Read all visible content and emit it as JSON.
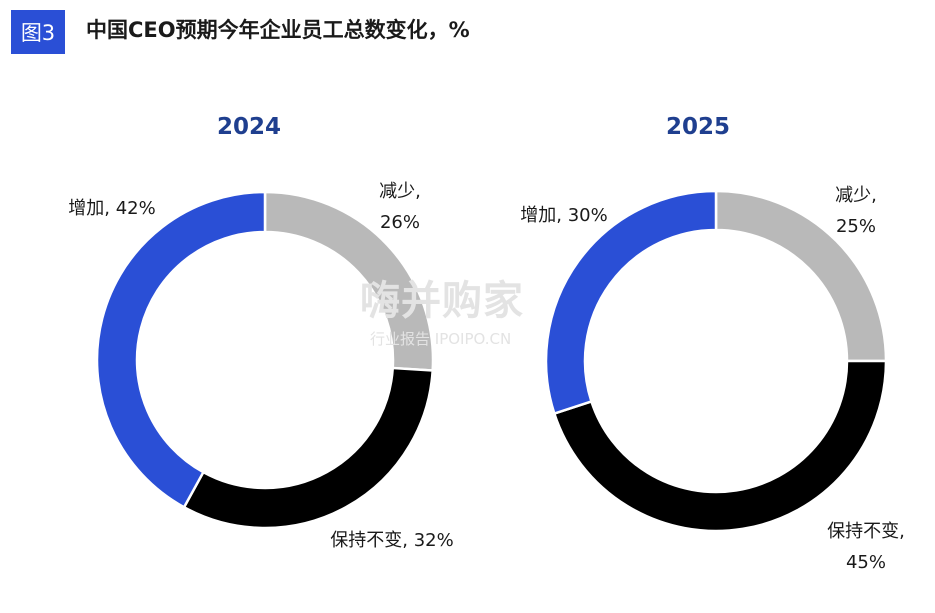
{
  "header": {
    "badge": "图3",
    "title": "中国CEO预期今年企业员工总数变化，%"
  },
  "watermark": {
    "main": "嗨并购家",
    "sub": "行业报告 IPOIPO.CN"
  },
  "colors": {
    "increase": "#2a4fd6",
    "decrease": "#b9b9b9",
    "unchanged": "#000000",
    "year_text": "#1f3f8f"
  },
  "chart_data": [
    {
      "type": "pie",
      "style": "donut",
      "title": "2024",
      "slices": [
        {
          "name": "减少",
          "value": 26,
          "color": "#b9b9b9",
          "label_lines": [
            "减少,",
            "26%"
          ]
        },
        {
          "name": "保持不变",
          "value": 32,
          "color": "#000000",
          "label_lines": [
            "保持不变, 32%"
          ]
        },
        {
          "name": "增加",
          "value": 42,
          "color": "#2a4fd6",
          "label_lines": [
            "增加, 42%"
          ]
        }
      ]
    },
    {
      "type": "pie",
      "style": "donut",
      "title": "2025",
      "slices": [
        {
          "name": "减少",
          "value": 25,
          "color": "#b9b9b9",
          "label_lines": [
            "减少,",
            "25%"
          ]
        },
        {
          "name": "保持不变",
          "value": 45,
          "color": "#000000",
          "label_lines": [
            "保持不变,",
            "45%"
          ]
        },
        {
          "name": "增加",
          "value": 30,
          "color": "#2a4fd6",
          "label_lines": [
            "增加, 30%"
          ]
        }
      ]
    }
  ]
}
